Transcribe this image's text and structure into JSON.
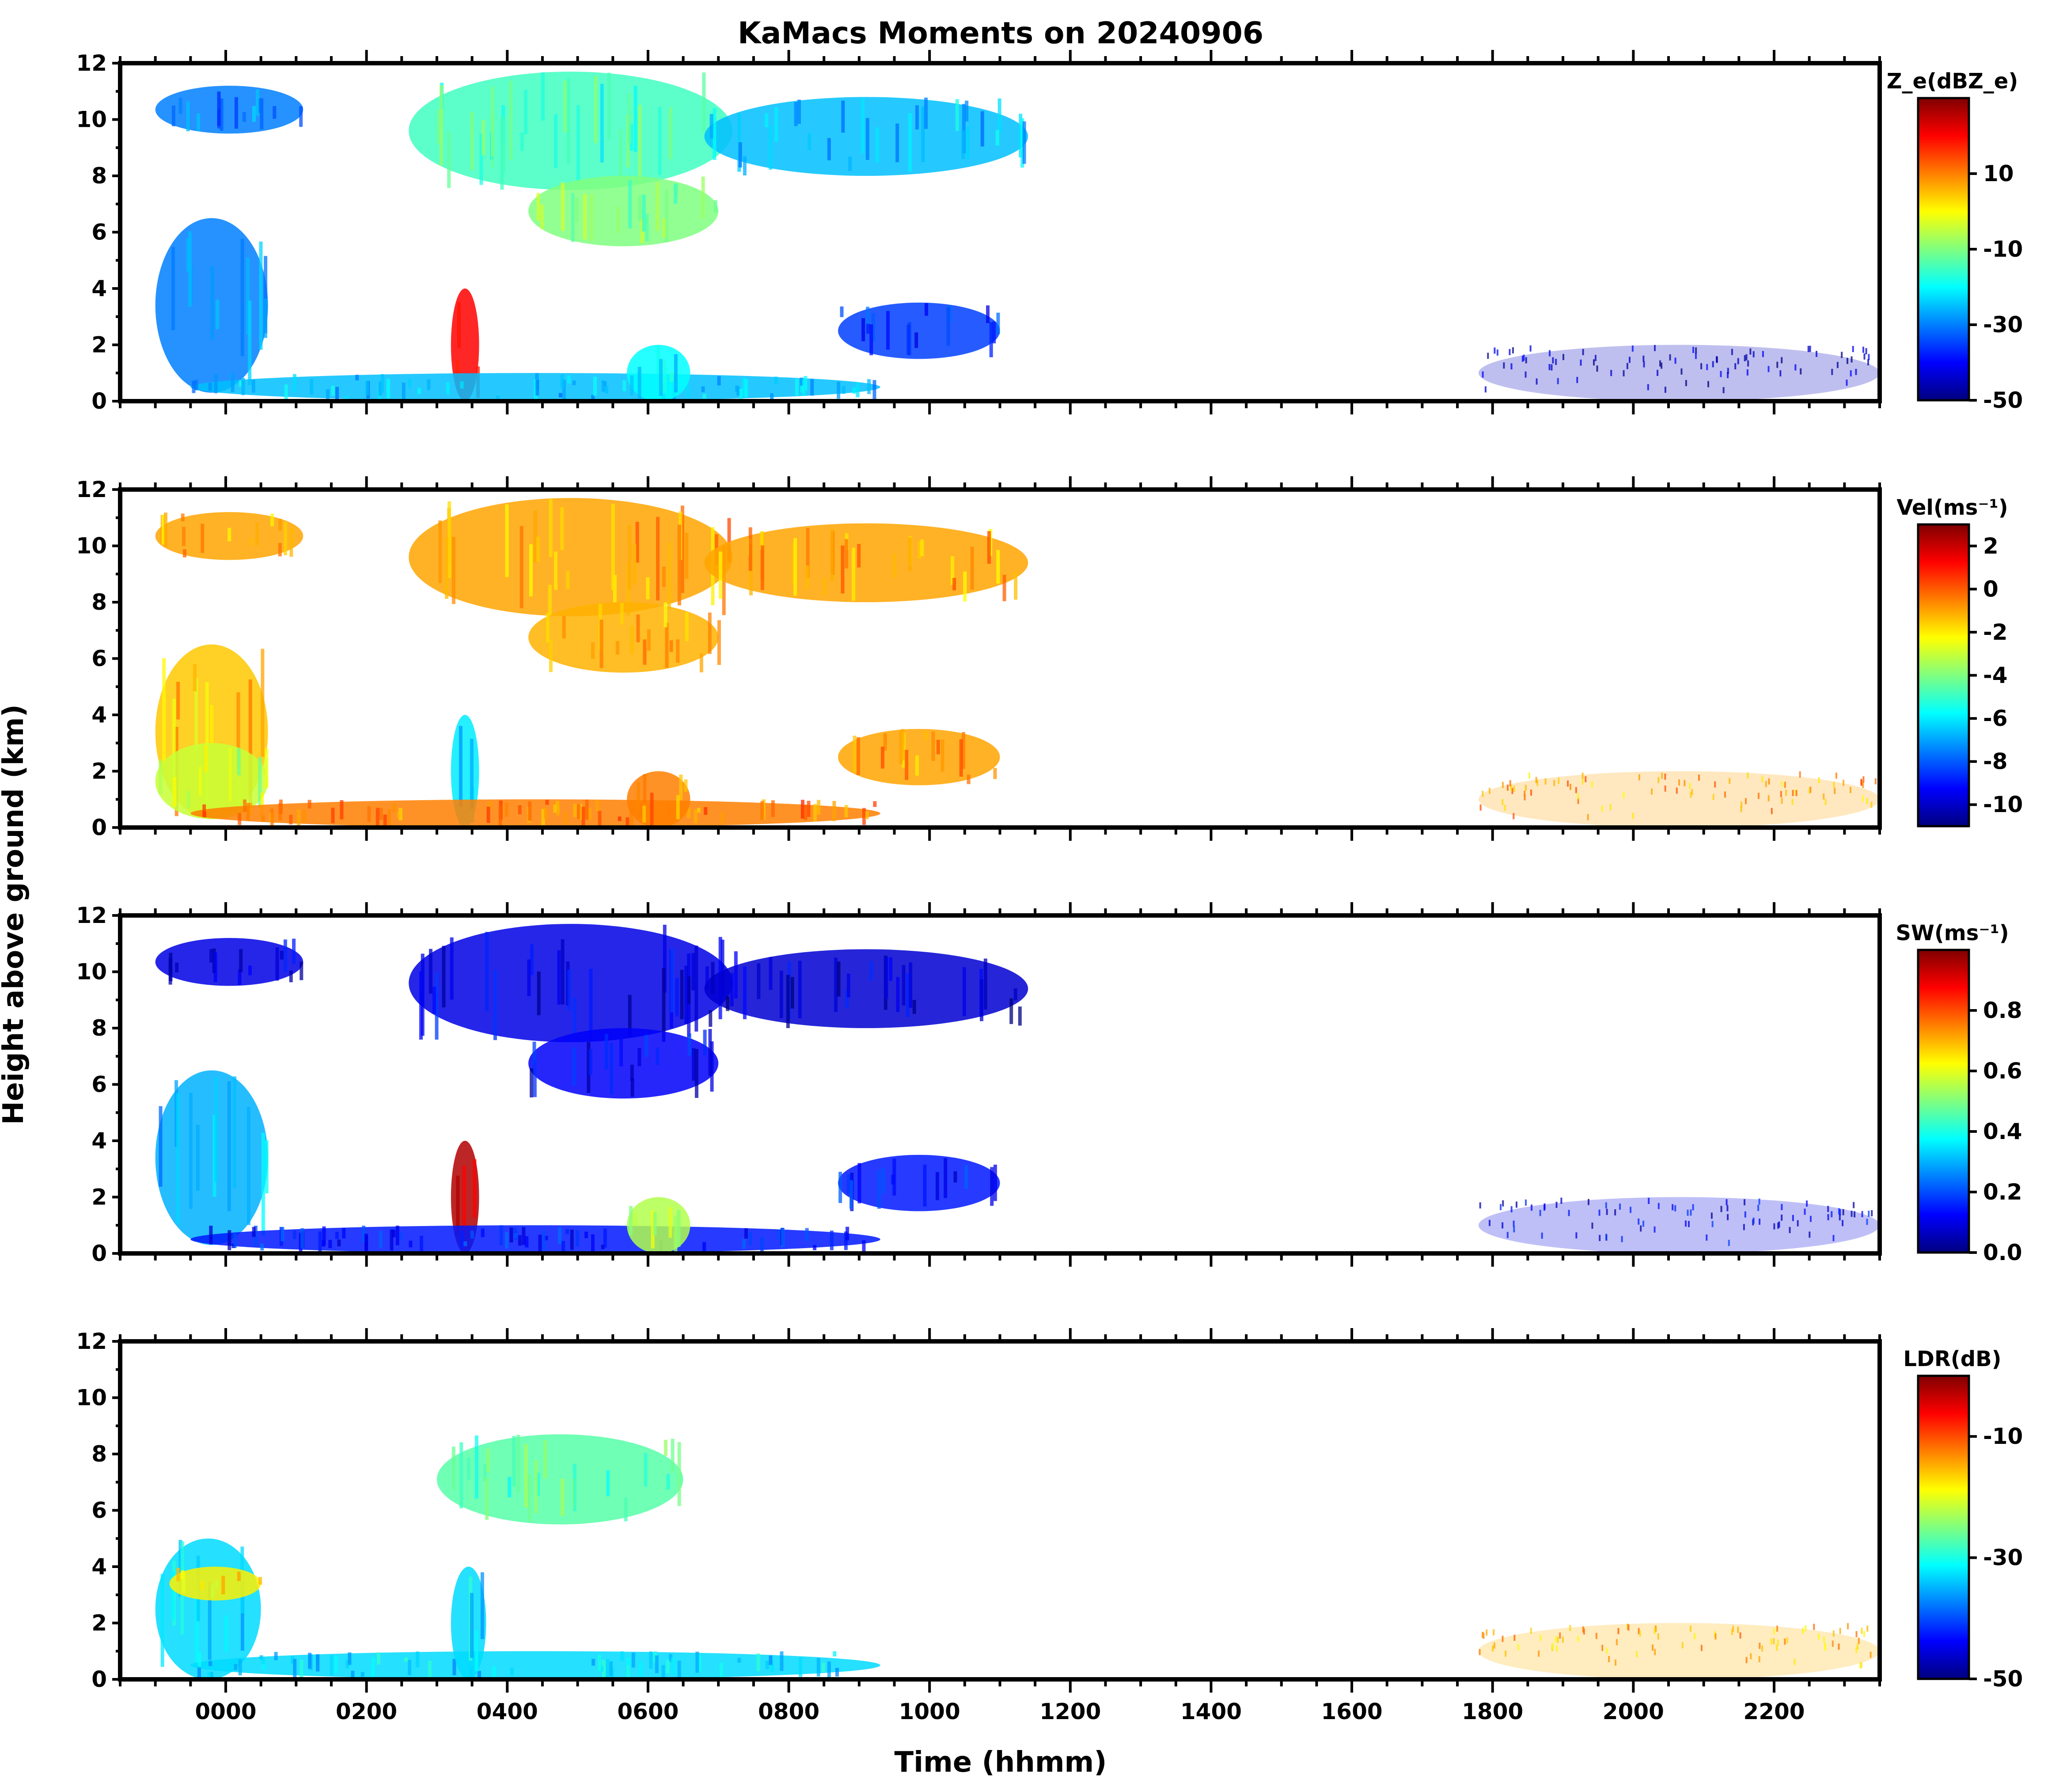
{
  "title": "KaMacs Moments on 20240906",
  "ylabel": "Height above ground (km)",
  "xlabel": "Time (hhmm)",
  "colormap": [
    "#00007f",
    "#0000ff",
    "#007fff",
    "#00ffff",
    "#7fff7f",
    "#ffff00",
    "#ff7f00",
    "#ff0000",
    "#7f0000"
  ],
  "chart_data": [
    {
      "type": "heatmap",
      "field": "reflectivity",
      "colorbar_label": "Z_e(dBZ_e)",
      "clim": [
        -50,
        30
      ],
      "colorbar_ticks": [
        10,
        -10,
        -30,
        -50
      ],
      "xlim_hours": [
        -1.5,
        23.5
      ],
      "x_ticks": [
        "0000",
        "0200",
        "0400",
        "0600",
        "0800",
        "1000",
        "1200",
        "1400",
        "1600",
        "1800",
        "2000",
        "2200"
      ],
      "y_ticks": [
        0,
        2,
        4,
        6,
        8,
        10,
        12
      ],
      "ylim": [
        0,
        12
      ],
      "features": [
        {
          "time": [
            -1.0,
            1.1
          ],
          "height": [
            9.5,
            11.2
          ],
          "value": -30
        },
        {
          "time": [
            2.6,
            7.2
          ],
          "height": [
            7.5,
            11.7
          ],
          "value": -15
        },
        {
          "time": [
            4.3,
            7.0
          ],
          "height": [
            5.5,
            8.0
          ],
          "value": -10
        },
        {
          "time": [
            6.8,
            11.4
          ],
          "height": [
            8.0,
            10.8
          ],
          "value": -25
        },
        {
          "time": [
            -1.0,
            0.6
          ],
          "height": [
            0.3,
            6.5
          ],
          "value": -30
        },
        {
          "time": [
            3.2,
            3.6
          ],
          "height": [
            0.0,
            4.0
          ],
          "value": 20
        },
        {
          "time": [
            -0.5,
            9.3
          ],
          "height": [
            0.0,
            1.0
          ],
          "value": -25
        },
        {
          "time": [
            5.7,
            6.6
          ],
          "height": [
            0.0,
            2.0
          ],
          "value": -20
        },
        {
          "time": [
            8.7,
            11.0
          ],
          "height": [
            1.5,
            3.5
          ],
          "value": -35
        },
        {
          "time": [
            17.8,
            23.5
          ],
          "height": [
            0.0,
            2.0
          ],
          "value": -45
        }
      ]
    },
    {
      "type": "heatmap",
      "field": "velocity",
      "colorbar_label": "Vel(ms⁻¹)",
      "clim": [
        -11,
        3
      ],
      "colorbar_ticks": [
        2,
        0,
        -2,
        -4,
        -6,
        -8,
        -10
      ],
      "xlim_hours": [
        -1.5,
        23.5
      ],
      "x_ticks": [
        "0000",
        "0200",
        "0400",
        "0600",
        "0800",
        "1000",
        "1200",
        "1400",
        "1600",
        "1800",
        "2000",
        "2200"
      ],
      "y_ticks": [
        0,
        2,
        4,
        6,
        8,
        10,
        12
      ],
      "ylim": [
        0,
        12
      ],
      "features": [
        {
          "time": [
            -1.0,
            1.1
          ],
          "height": [
            9.5,
            11.2
          ],
          "value": -1
        },
        {
          "time": [
            2.6,
            7.2
          ],
          "height": [
            7.5,
            11.7
          ],
          "value": -1
        },
        {
          "time": [
            4.3,
            7.0
          ],
          "height": [
            5.5,
            8.0
          ],
          "value": -1.2
        },
        {
          "time": [
            6.8,
            11.4
          ],
          "height": [
            8.0,
            10.8
          ],
          "value": -1
        },
        {
          "time": [
            -1.0,
            0.6
          ],
          "height": [
            0.3,
            6.5
          ],
          "value": -1.5
        },
        {
          "time": [
            -1.0,
            0.6
          ],
          "height": [
            0.3,
            3.0
          ],
          "value": -3
        },
        {
          "time": [
            3.2,
            3.6
          ],
          "height": [
            0.0,
            4.0
          ],
          "value": -6
        },
        {
          "time": [
            -0.5,
            9.3
          ],
          "height": [
            0.0,
            1.0
          ],
          "value": -0.5
        },
        {
          "time": [
            5.7,
            6.6
          ],
          "height": [
            0.0,
            2.0
          ],
          "value": -0.5
        },
        {
          "time": [
            8.7,
            11.0
          ],
          "height": [
            1.5,
            3.5
          ],
          "value": -1
        },
        {
          "time": [
            17.8,
            23.5
          ],
          "height": [
            0.0,
            2.0
          ],
          "value": -1
        }
      ]
    },
    {
      "type": "heatmap",
      "field": "spectrum_width",
      "colorbar_label": "SW(ms⁻¹)",
      "clim": [
        0.0,
        1.0
      ],
      "colorbar_ticks": [
        0.8,
        0.6,
        0.4,
        0.2,
        0.0
      ],
      "xlim_hours": [
        -1.5,
        23.5
      ],
      "x_ticks": [
        "0000",
        "0200",
        "0400",
        "0600",
        "0800",
        "1000",
        "1200",
        "1400",
        "1600",
        "1800",
        "2000",
        "2200"
      ],
      "y_ticks": [
        0,
        2,
        4,
        6,
        8,
        10,
        12
      ],
      "ylim": [
        0,
        12
      ],
      "features": [
        {
          "time": [
            -1.0,
            1.1
          ],
          "height": [
            9.5,
            11.2
          ],
          "value": 0.1
        },
        {
          "time": [
            2.6,
            7.2
          ],
          "height": [
            7.5,
            11.7
          ],
          "value": 0.1
        },
        {
          "time": [
            4.3,
            7.0
          ],
          "height": [
            5.5,
            8.0
          ],
          "value": 0.12
        },
        {
          "time": [
            6.8,
            11.4
          ],
          "height": [
            8.0,
            10.8
          ],
          "value": 0.08
        },
        {
          "time": [
            -1.0,
            0.6
          ],
          "height": [
            0.3,
            6.5
          ],
          "value": 0.3
        },
        {
          "time": [
            3.2,
            3.6
          ],
          "height": [
            0.0,
            4.0
          ],
          "value": 0.95
        },
        {
          "time": [
            -0.5,
            9.3
          ],
          "height": [
            0.0,
            1.0
          ],
          "value": 0.15
        },
        {
          "time": [
            5.7,
            6.6
          ],
          "height": [
            0.0,
            2.0
          ],
          "value": 0.55
        },
        {
          "time": [
            8.7,
            11.0
          ],
          "height": [
            1.5,
            3.5
          ],
          "value": 0.15
        },
        {
          "time": [
            17.8,
            23.5
          ],
          "height": [
            0.0,
            2.0
          ],
          "value": 0.1
        }
      ]
    },
    {
      "type": "heatmap",
      "field": "ldr",
      "colorbar_label": "LDR(dB)",
      "clim": [
        -50,
        0
      ],
      "colorbar_ticks": [
        -10,
        -30,
        -50
      ],
      "xlim_hours": [
        -1.5,
        23.5
      ],
      "x_ticks": [
        "0000",
        "0200",
        "0400",
        "0600",
        "0800",
        "1000",
        "1200",
        "1400",
        "1600",
        "1800",
        "2000",
        "2200"
      ],
      "y_ticks": [
        0,
        2,
        4,
        6,
        8,
        10,
        12
      ],
      "ylim": [
        0,
        12
      ],
      "features": [
        {
          "time": [
            3.0,
            6.5
          ],
          "height": [
            5.5,
            8.7
          ],
          "value": -27
        },
        {
          "time": [
            -1.0,
            0.5
          ],
          "height": [
            0.0,
            5.0
          ],
          "value": -33
        },
        {
          "time": [
            -0.8,
            0.5
          ],
          "height": [
            2.8,
            4.0
          ],
          "value": -18
        },
        {
          "time": [
            -0.5,
            9.3
          ],
          "height": [
            0.0,
            1.0
          ],
          "value": -33
        },
        {
          "time": [
            3.2,
            3.7
          ],
          "height": [
            0.0,
            4.0
          ],
          "value": -33
        },
        {
          "time": [
            17.8,
            23.5
          ],
          "height": [
            0.0,
            2.0
          ],
          "value": -15
        }
      ]
    }
  ]
}
